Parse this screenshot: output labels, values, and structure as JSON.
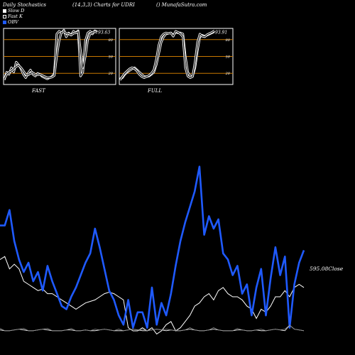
{
  "header": {
    "left": "Daily Stochastics",
    "center": "(14,3,3) Charts for UDRI",
    "right": "() MunafaSutra.com"
  },
  "legend": [
    {
      "label": "Slow  D",
      "color": "#ffffff"
    },
    {
      "label": "Fast  K",
      "color": "#000000"
    },
    {
      "label": "OBV",
      "color": "#1f5aff"
    }
  ],
  "chart_data": [
    {
      "type": "line",
      "title": "FAST",
      "ylim": [
        0,
        100
      ],
      "y_ticks": [
        "80",
        "50",
        "20"
      ],
      "reference_lines": [
        80,
        50,
        20
      ],
      "last_value_label": "93.63",
      "series": [
        {
          "name": "Fast  K",
          "values": [
            8,
            22,
            18,
            30,
            22,
            40,
            35,
            28,
            18,
            12,
            20,
            26,
            18,
            15,
            20,
            18,
            14,
            12,
            10,
            12,
            14,
            20,
            90,
            95,
            92,
            97,
            85,
            92,
            88,
            95,
            92,
            96,
            15,
            22,
            78,
            92,
            95,
            90,
            96,
            94
          ]
        },
        {
          "values": [
            10,
            18,
            22,
            24,
            28,
            32,
            34,
            30,
            24,
            18,
            17,
            20,
            21,
            18,
            17,
            18,
            16,
            14,
            12,
            12,
            13,
            16,
            50,
            78,
            93,
            94,
            91,
            91,
            88,
            91,
            92,
            94,
            60,
            30,
            50,
            80,
            90,
            93,
            94,
            93
          ]
        }
      ]
    },
    {
      "type": "line",
      "title": "FULL",
      "ylim": [
        0,
        100
      ],
      "y_ticks": [
        "80",
        "50",
        "20"
      ],
      "reference_lines": [
        80,
        50,
        20
      ],
      "last_value_label": "93.91",
      "series": [
        {
          "values": [
            10,
            12,
            18,
            22,
            25,
            28,
            30,
            26,
            22,
            18,
            14,
            14,
            15,
            18,
            22,
            35,
            55,
            75,
            85,
            90,
            91,
            92,
            88,
            93,
            92,
            92,
            90,
            50,
            22,
            15,
            15,
            30,
            60,
            85,
            88,
            86,
            88,
            90,
            92,
            94
          ]
        },
        {
          "values": [
            8,
            14,
            20,
            24,
            28,
            30,
            28,
            24,
            18,
            14,
            12,
            14,
            16,
            20,
            26,
            45,
            70,
            85,
            90,
            92,
            91,
            92,
            86,
            95,
            93,
            90,
            85,
            30,
            15,
            12,
            14,
            40,
            75,
            90,
            86,
            85,
            89,
            91,
            93,
            96
          ]
        }
      ]
    },
    {
      "type": "line",
      "annotation": "595.08Close",
      "series": [
        {
          "name": "OBV",
          "values": [
            58,
            58,
            68,
            48,
            36,
            28,
            34,
            22,
            28,
            16,
            32,
            22,
            14,
            6,
            4,
            12,
            18,
            26,
            34,
            40,
            56,
            44,
            30,
            16,
            10,
            0,
            -6,
            10,
            -8,
            2,
            2,
            -8,
            18,
            -6,
            8,
            0,
            14,
            32,
            48,
            60,
            70,
            80,
            96,
            52,
            64,
            56,
            62,
            40,
            36,
            26,
            32,
            14,
            20,
            0,
            18,
            30,
            0,
            24,
            44,
            26,
            38,
            -8,
            20,
            34,
            42
          ]
        },
        {
          "values": [
            36,
            38,
            30,
            33,
            30,
            22,
            20,
            18,
            16,
            17,
            14,
            14,
            12,
            10,
            8,
            6,
            4,
            6,
            8,
            9,
            10,
            12,
            14,
            15,
            14,
            12,
            10,
            -8,
            -10,
            -10,
            -8,
            -10,
            -8,
            -12,
            -10,
            -6,
            -4,
            -10,
            -8,
            -4,
            0,
            6,
            8,
            12,
            14,
            10,
            16,
            18,
            14,
            12,
            12,
            10,
            6,
            4,
            -2,
            4,
            2,
            6,
            12,
            12,
            16,
            12,
            18,
            20,
            18
          ]
        }
      ]
    }
  ],
  "colors": {
    "obv": "#1f5aff",
    "d": "#ffffff",
    "k": "#000000",
    "ref": "#c87800",
    "panel_border": "#ffffff"
  }
}
